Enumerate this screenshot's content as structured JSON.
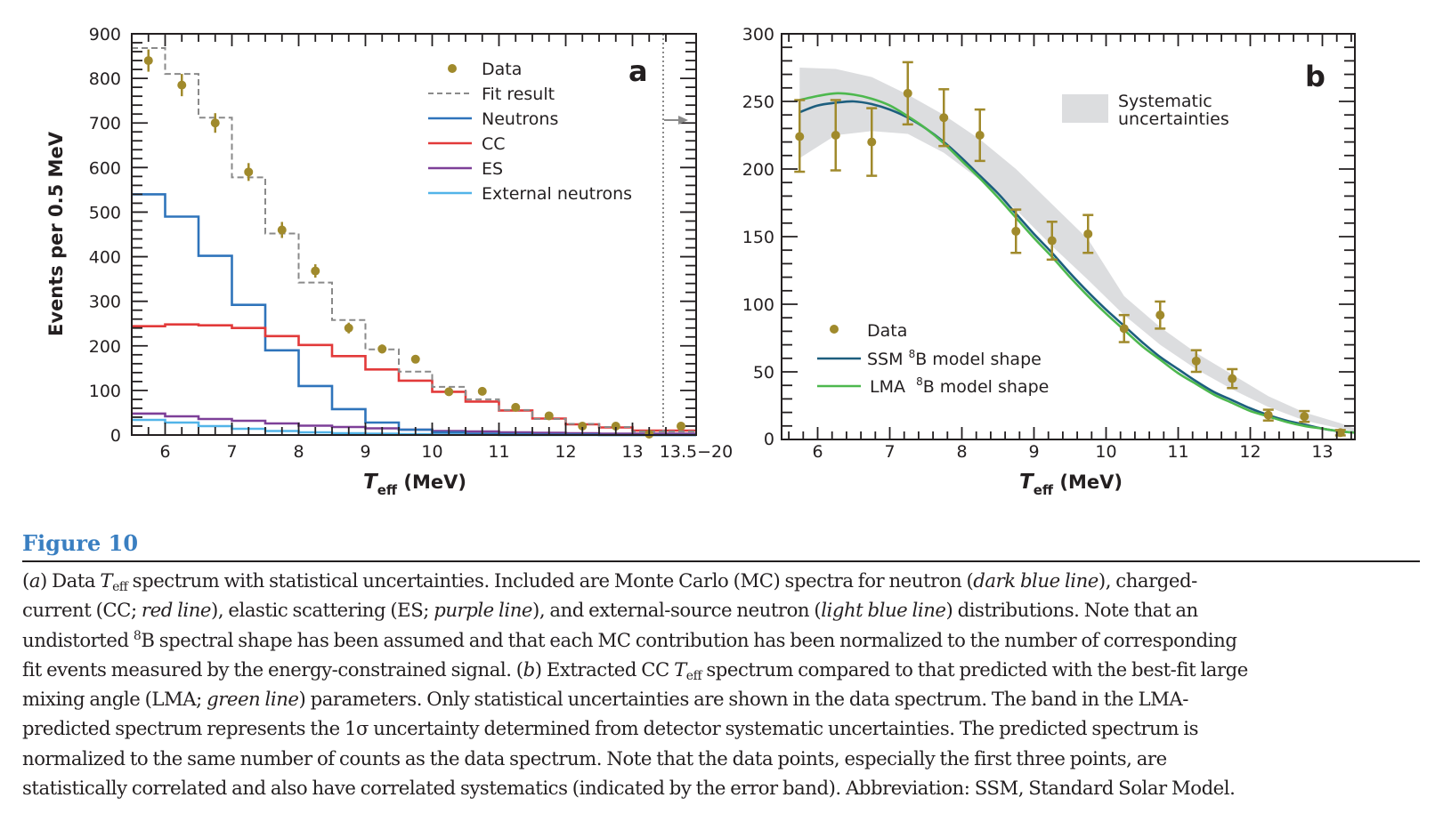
{
  "figure": {
    "label": "Figure 10",
    "caption_segments": [
      {
        "t": "(",
        "s": "n"
      },
      {
        "t": "a",
        "s": "i"
      },
      {
        "t": ") Data ",
        "s": "n"
      },
      {
        "t": "T",
        "s": "i"
      },
      {
        "t": "eff",
        "s": "sub"
      },
      {
        "t": " spectrum with statistical uncertainties. Included are Monte Carlo (MC) spectra for neutron (",
        "s": "n"
      },
      {
        "t": "dark blue line",
        "s": "i"
      },
      {
        "t": "), charged-",
        "s": "n"
      },
      {
        "t": "",
        "s": "br"
      },
      {
        "t": "current (CC; ",
        "s": "n"
      },
      {
        "t": "red line",
        "s": "i"
      },
      {
        "t": "), elastic scattering (ES; ",
        "s": "n"
      },
      {
        "t": "purple line",
        "s": "i"
      },
      {
        "t": "), and external-source neutron (",
        "s": "n"
      },
      {
        "t": "light blue line",
        "s": "i"
      },
      {
        "t": ") distributions. Note that an",
        "s": "n"
      },
      {
        "t": "",
        "s": "br"
      },
      {
        "t": "undistorted ",
        "s": "n"
      },
      {
        "t": "8",
        "s": "sup"
      },
      {
        "t": "B spectral shape has been assumed and that each MC contribution has been normalized to the number of corresponding",
        "s": "n"
      },
      {
        "t": "",
        "s": "br"
      },
      {
        "t": "fit events measured by the energy-constrained signal. (",
        "s": "n"
      },
      {
        "t": "b",
        "s": "i"
      },
      {
        "t": ") Extracted CC ",
        "s": "n"
      },
      {
        "t": "T",
        "s": "i"
      },
      {
        "t": "eff",
        "s": "sub"
      },
      {
        "t": " spectrum compared to that predicted with the best-fit large",
        "s": "n"
      },
      {
        "t": "",
        "s": "br"
      },
      {
        "t": "mixing angle (LMA; ",
        "s": "n"
      },
      {
        "t": "green line",
        "s": "i"
      },
      {
        "t": ") parameters. Only statistical uncertainties are shown in the data spectrum. The band in the LMA-",
        "s": "n"
      },
      {
        "t": "",
        "s": "br"
      },
      {
        "t": "predicted spectrum represents the 1σ uncertainty determined from detector systematic uncertainties. The predicted spectrum is",
        "s": "n"
      },
      {
        "t": "",
        "s": "br"
      },
      {
        "t": "normalized to the same number of counts as the data spectrum. Note that the data points, especially the first three points, are",
        "s": "n"
      },
      {
        "t": "",
        "s": "br"
      },
      {
        "t": "statistically correlated and also have correlated systematics (indicated by the error band). Abbreviation: SSM, Standard Solar Model.",
        "s": "n"
      }
    ]
  },
  "colors": {
    "data": "#a08a2c",
    "fit": "#8a8a8a",
    "neutrons": "#2f74bb",
    "cc": "#e23a3a",
    "es": "#7d3f98",
    "external": "#52b4e8",
    "ssm": "#1d5e7e",
    "lma": "#4db84e",
    "band": "#dcdddf",
    "axis": "#231f20"
  },
  "chart_data": [
    {
      "type": "bar",
      "panel": "a",
      "title": "",
      "xlabel": "T_eff (MeV)",
      "xlabel_main": "T",
      "xlabel_sub": "eff",
      "xlabel_unit": " (MeV)",
      "ylabel": "Events per 0.5 MeV",
      "xlim": [
        5.5,
        14.0
      ],
      "ylim": [
        0,
        900
      ],
      "x_ticks": [
        "6",
        "7",
        "8",
        "9",
        "10",
        "11",
        "12",
        "13",
        "13.5−20"
      ],
      "x_tick_values": [
        6,
        7,
        8,
        9,
        10,
        11,
        12,
        13,
        14.0
      ],
      "y_ticks": [
        0,
        100,
        200,
        300,
        400,
        500,
        600,
        700,
        800,
        900
      ],
      "bin_edges": [
        5.5,
        6.0,
        6.5,
        7.0,
        7.5,
        8.0,
        8.5,
        9.0,
        9.5,
        10.0,
        10.5,
        11.0,
        11.5,
        12.0,
        12.5,
        13.0,
        13.5,
        14.0
      ],
      "last_bin_label": "13.5−20",
      "legend": [
        "Data",
        "Fit result",
        "Neutrons",
        "CC",
        "ES",
        "External neutrons"
      ],
      "legend_position": "top-right",
      "panel_letter": "a",
      "overflow_arrow": true,
      "series": [
        {
          "name": "Data",
          "kind": "points",
          "values": [
            840,
            785,
            700,
            590,
            460,
            368,
            240,
            193,
            170,
            97,
            98,
            62,
            43,
            20,
            20,
            2,
            20
          ],
          "errors": [
            25,
            25,
            22,
            20,
            18,
            15,
            12,
            10,
            9,
            6,
            6,
            5,
            4,
            3,
            3,
            2,
            3
          ]
        },
        {
          "name": "Fit result",
          "kind": "step",
          "values": [
            868,
            810,
            712,
            578,
            452,
            342,
            258,
            192,
            142,
            108,
            80,
            56,
            36,
            25,
            18,
            8,
            8
          ]
        },
        {
          "name": "Neutrons",
          "kind": "step",
          "values": [
            540,
            490,
            402,
            292,
            190,
            110,
            58,
            28,
            12,
            6,
            3,
            2,
            1,
            1,
            0,
            0,
            0
          ]
        },
        {
          "name": "CC",
          "kind": "step",
          "values": [
            244,
            248,
            246,
            240,
            222,
            202,
            177,
            147,
            122,
            97,
            75,
            55,
            37,
            24,
            17,
            10,
            10
          ]
        },
        {
          "name": "ES",
          "kind": "step",
          "values": [
            48,
            42,
            36,
            32,
            26,
            21,
            18,
            15,
            12,
            9,
            8,
            6,
            5,
            4,
            3,
            3,
            3
          ]
        },
        {
          "name": "External neutrons",
          "kind": "step",
          "values": [
            34,
            28,
            20,
            14,
            9,
            6,
            4,
            3,
            2,
            1,
            1,
            0,
            0,
            0,
            0,
            0,
            0
          ]
        }
      ]
    },
    {
      "type": "scatter",
      "panel": "b",
      "title": "",
      "xlabel": "T_eff (MeV)",
      "xlabel_main": "T",
      "xlabel_sub": "eff",
      "xlabel_unit": " (MeV)",
      "ylabel": "",
      "xlim": [
        5.5,
        13.45
      ],
      "ylim": [
        0,
        300
      ],
      "x_ticks": [
        "6",
        "7",
        "8",
        "9",
        "10",
        "11",
        "12",
        "13"
      ],
      "x_tick_values": [
        6,
        7,
        8,
        9,
        10,
        11,
        12,
        13
      ],
      "y_ticks": [
        0,
        50,
        100,
        150,
        200,
        250,
        300
      ],
      "legend": [
        "Data",
        "SSM ⁸B model shape",
        "LMA ⁸B model shape",
        "Systematic uncertainties"
      ],
      "legend_position": "bottom-left (lines), top-right (band)",
      "panel_letter": "b",
      "band_label_1": "Systematic",
      "band_label_2": "uncertainties",
      "legend_data": "Data",
      "legend_ssm_pre": "SSM ",
      "legend_lma_pre": "LMA  ",
      "legend_sup": "8",
      "legend_post": "B model shape",
      "series": [
        {
          "name": "Data",
          "kind": "points",
          "x": [
            5.75,
            6.25,
            6.75,
            7.25,
            7.75,
            8.25,
            8.75,
            9.25,
            9.75,
            10.25,
            10.75,
            11.25,
            11.75,
            12.25,
            12.75,
            13.25
          ],
          "y": [
            224,
            225,
            220,
            256,
            238,
            225,
            154,
            147,
            152,
            82,
            92,
            58,
            45,
            18,
            17,
            5
          ],
          "err_lo": [
            26,
            26,
            25,
            23,
            21,
            19,
            16,
            14,
            14,
            10,
            10,
            8,
            7,
            4,
            4,
            2
          ],
          "err_hi": [
            27,
            26,
            25,
            23,
            21,
            19,
            16,
            14,
            14,
            10,
            10,
            8,
            7,
            4,
            4,
            2
          ]
        },
        {
          "name": "SSM ⁸B model shape",
          "kind": "line",
          "x": [
            5.75,
            6.0,
            6.25,
            6.5,
            6.75,
            7.0,
            7.25,
            7.5,
            7.75,
            8.0,
            8.25,
            8.5,
            8.75,
            9.0,
            9.25,
            9.5,
            9.75,
            10.0,
            10.25,
            10.5,
            10.75,
            11.0,
            11.25,
            11.5,
            11.75,
            12.0,
            12.25,
            12.5,
            12.75,
            13.0,
            13.25,
            13.45
          ],
          "y": [
            242,
            247,
            249,
            250,
            248,
            244,
            238,
            230,
            220,
            208,
            195,
            182,
            167,
            152,
            138,
            123,
            109,
            96,
            84,
            72,
            61,
            52,
            43,
            35,
            29,
            23,
            18,
            14,
            11,
            8,
            6,
            5
          ]
        },
        {
          "name": "LMA ⁸B model shape",
          "kind": "line",
          "x": [
            5.75,
            6.0,
            6.25,
            6.5,
            6.75,
            7.0,
            7.25,
            7.5,
            7.75,
            8.0,
            8.25,
            8.5,
            8.75,
            9.0,
            9.25,
            9.5,
            9.75,
            10.0,
            10.25,
            10.5,
            10.75,
            11.0,
            11.25,
            11.5,
            11.75,
            12.0,
            12.25,
            12.5,
            12.75,
            13.0,
            13.25,
            13.45
          ],
          "y": [
            251,
            254,
            256,
            255,
            252,
            247,
            239,
            230,
            219,
            206,
            193,
            179,
            164,
            149,
            135,
            120,
            106,
            93,
            81,
            69,
            59,
            49,
            41,
            33,
            27,
            21,
            17,
            13,
            10,
            8,
            6,
            5
          ]
        },
        {
          "name": "Systematic uncertainties",
          "kind": "band",
          "x": [
            5.75,
            6.25,
            6.75,
            7.25,
            7.75,
            8.25,
            8.75,
            9.25,
            9.75,
            10.25,
            10.75,
            11.25,
            11.75,
            12.25,
            12.75,
            13.25,
            13.45
          ],
          "lo": [
            208,
            225,
            228,
            226,
            212,
            192,
            170,
            143,
            118,
            92,
            70,
            52,
            37,
            24,
            14,
            8,
            6
          ],
          "hi": [
            275,
            274,
            268,
            255,
            240,
            222,
            200,
            174,
            148,
            106,
            83,
            64,
            48,
            32,
            20,
            12,
            8
          ]
        }
      ]
    }
  ]
}
